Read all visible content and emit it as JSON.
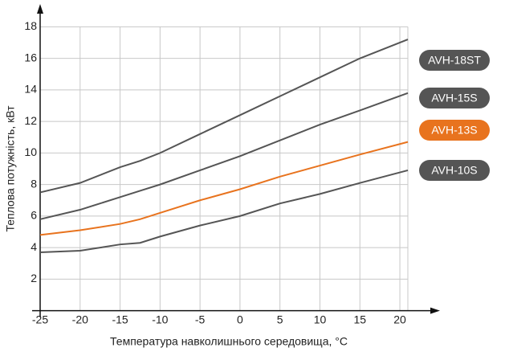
{
  "chart_data": {
    "type": "line",
    "x_label": "Температура навколишнього середовища, °C",
    "y_label": "Теплова потужність, кВт",
    "x": [
      -25,
      -20,
      -15,
      -12.5,
      -10,
      -5,
      0,
      5,
      10,
      15,
      21
    ],
    "series": [
      {
        "name": "AVH-18ST",
        "color": "#555555",
        "values": [
          7.5,
          8.1,
          9.1,
          9.5,
          10.0,
          11.2,
          12.4,
          13.6,
          14.8,
          16.0,
          17.2
        ]
      },
      {
        "name": "AVH-15S",
        "color": "#555555",
        "values": [
          5.8,
          6.4,
          7.2,
          7.6,
          8.0,
          8.9,
          9.8,
          10.8,
          11.8,
          12.7,
          13.8
        ]
      },
      {
        "name": "AVH-13S",
        "color": "#e8731e",
        "values": [
          4.8,
          5.1,
          5.5,
          5.8,
          6.2,
          7.0,
          7.7,
          8.5,
          9.2,
          9.9,
          10.7
        ]
      },
      {
        "name": "AVH-10S",
        "color": "#555555",
        "values": [
          3.7,
          3.8,
          4.2,
          4.3,
          4.7,
          5.4,
          6.0,
          6.8,
          7.4,
          8.1,
          8.9
        ]
      }
    ],
    "xlim": [
      -25,
      21
    ],
    "ylim": [
      0,
      18
    ],
    "xticks": [
      -25,
      -20,
      -15,
      -10,
      -5,
      0,
      5,
      10,
      15,
      20
    ],
    "yticks": [
      2,
      4,
      6,
      8,
      10,
      12,
      14,
      16,
      18
    ],
    "grid": true
  }
}
